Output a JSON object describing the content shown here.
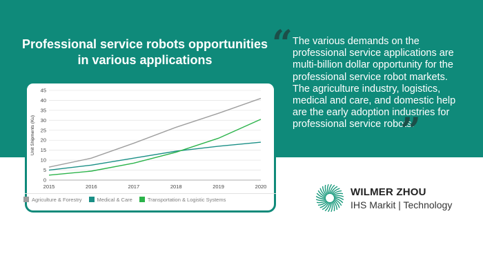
{
  "headline": "Professional service robots opportunities in various applications",
  "quote": "The various demands on the professional service applications are multi-billion dollar opportunity for the professional service robot markets. The agriculture industry, logistics, medical and care, and domestic help are the early adoption industries for professional service robots.",
  "brand": {
    "name": "WILMER ZHOU",
    "subtitle": "IHS Markit | Technology"
  },
  "colors": {
    "band": "#0f8a7a",
    "quote_marks": "#1c4f49"
  },
  "chart_data": {
    "type": "line",
    "x": [
      2015,
      2016,
      2017,
      2018,
      2019,
      2020
    ],
    "ylabel": "Unit Shipments (Ku)",
    "ylim": [
      0,
      45
    ],
    "yticks": [
      0,
      5,
      10,
      15,
      20,
      25,
      30,
      35,
      40,
      45
    ],
    "grid": true,
    "legend_position": "bottom",
    "series": [
      {
        "name": "Agriculture & Forestry",
        "color": "#9e9e9e",
        "values": [
          6.5,
          11,
          18.5,
          26.5,
          33.5,
          41
        ]
      },
      {
        "name": "Medical & Care",
        "color": "#1a8f86",
        "values": [
          5,
          7.5,
          11,
          14.5,
          17,
          19
        ]
      },
      {
        "name": "Transportation & Logistic Systems",
        "color": "#2bb34a",
        "values": [
          2.5,
          4.5,
          8.5,
          14,
          21,
          30.5
        ]
      }
    ]
  }
}
